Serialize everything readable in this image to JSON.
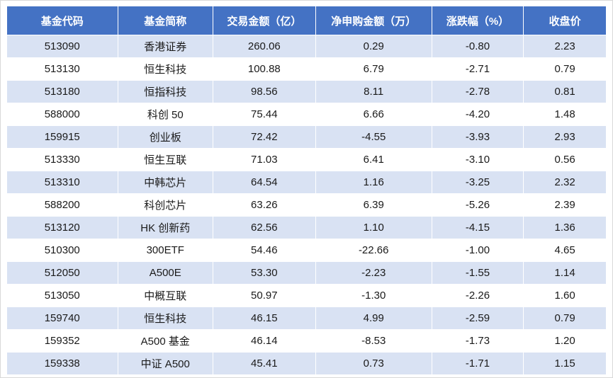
{
  "chart_data": {
    "type": "table",
    "columns": [
      "基金代码",
      "基金简称",
      "交易金额（亿）",
      "净申购金额（万）",
      "涨跌幅（%）",
      "收盘价"
    ],
    "rows": [
      [
        "513090",
        "香港证券",
        "260.06",
        "0.29",
        "-0.80",
        "2.23"
      ],
      [
        "513130",
        "恒生科技",
        "100.88",
        "6.79",
        "-2.71",
        "0.79"
      ],
      [
        "513180",
        "恒指科技",
        "98.56",
        "8.11",
        "-2.78",
        "0.81"
      ],
      [
        "588000",
        "科创 50",
        "75.44",
        "6.66",
        "-4.20",
        "1.48"
      ],
      [
        "159915",
        "创业板",
        "72.42",
        "-4.55",
        "-3.93",
        "2.93"
      ],
      [
        "513330",
        "恒生互联",
        "71.03",
        "6.41",
        "-3.10",
        "0.56"
      ],
      [
        "513310",
        "中韩芯片",
        "64.54",
        "1.16",
        "-3.25",
        "2.32"
      ],
      [
        "588200",
        "科创芯片",
        "63.26",
        "6.39",
        "-5.26",
        "2.39"
      ],
      [
        "513120",
        "HK 创新药",
        "62.56",
        "1.10",
        "-4.15",
        "1.36"
      ],
      [
        "510300",
        "300ETF",
        "54.46",
        "-22.66",
        "-1.00",
        "4.65"
      ],
      [
        "512050",
        "A500E",
        "53.30",
        "-2.23",
        "-1.55",
        "1.14"
      ],
      [
        "513050",
        "中概互联",
        "50.97",
        "-1.30",
        "-2.26",
        "1.60"
      ],
      [
        "159740",
        "恒生科技",
        "46.15",
        "4.99",
        "-2.59",
        "0.79"
      ],
      [
        "159352",
        "A500 基金",
        "46.14",
        "-8.53",
        "-1.73",
        "1.20"
      ],
      [
        "159338",
        "中证 A500",
        "45.41",
        "0.73",
        "-1.71",
        "1.15"
      ]
    ]
  },
  "colors": {
    "header_bg": "#4472C4",
    "header_text": "#FFFFFF",
    "row_alt_bg": "#D9E2F3",
    "row_bg": "#FFFFFF",
    "text": "#1A1A1A",
    "outer_border": "#D9D9D9"
  }
}
